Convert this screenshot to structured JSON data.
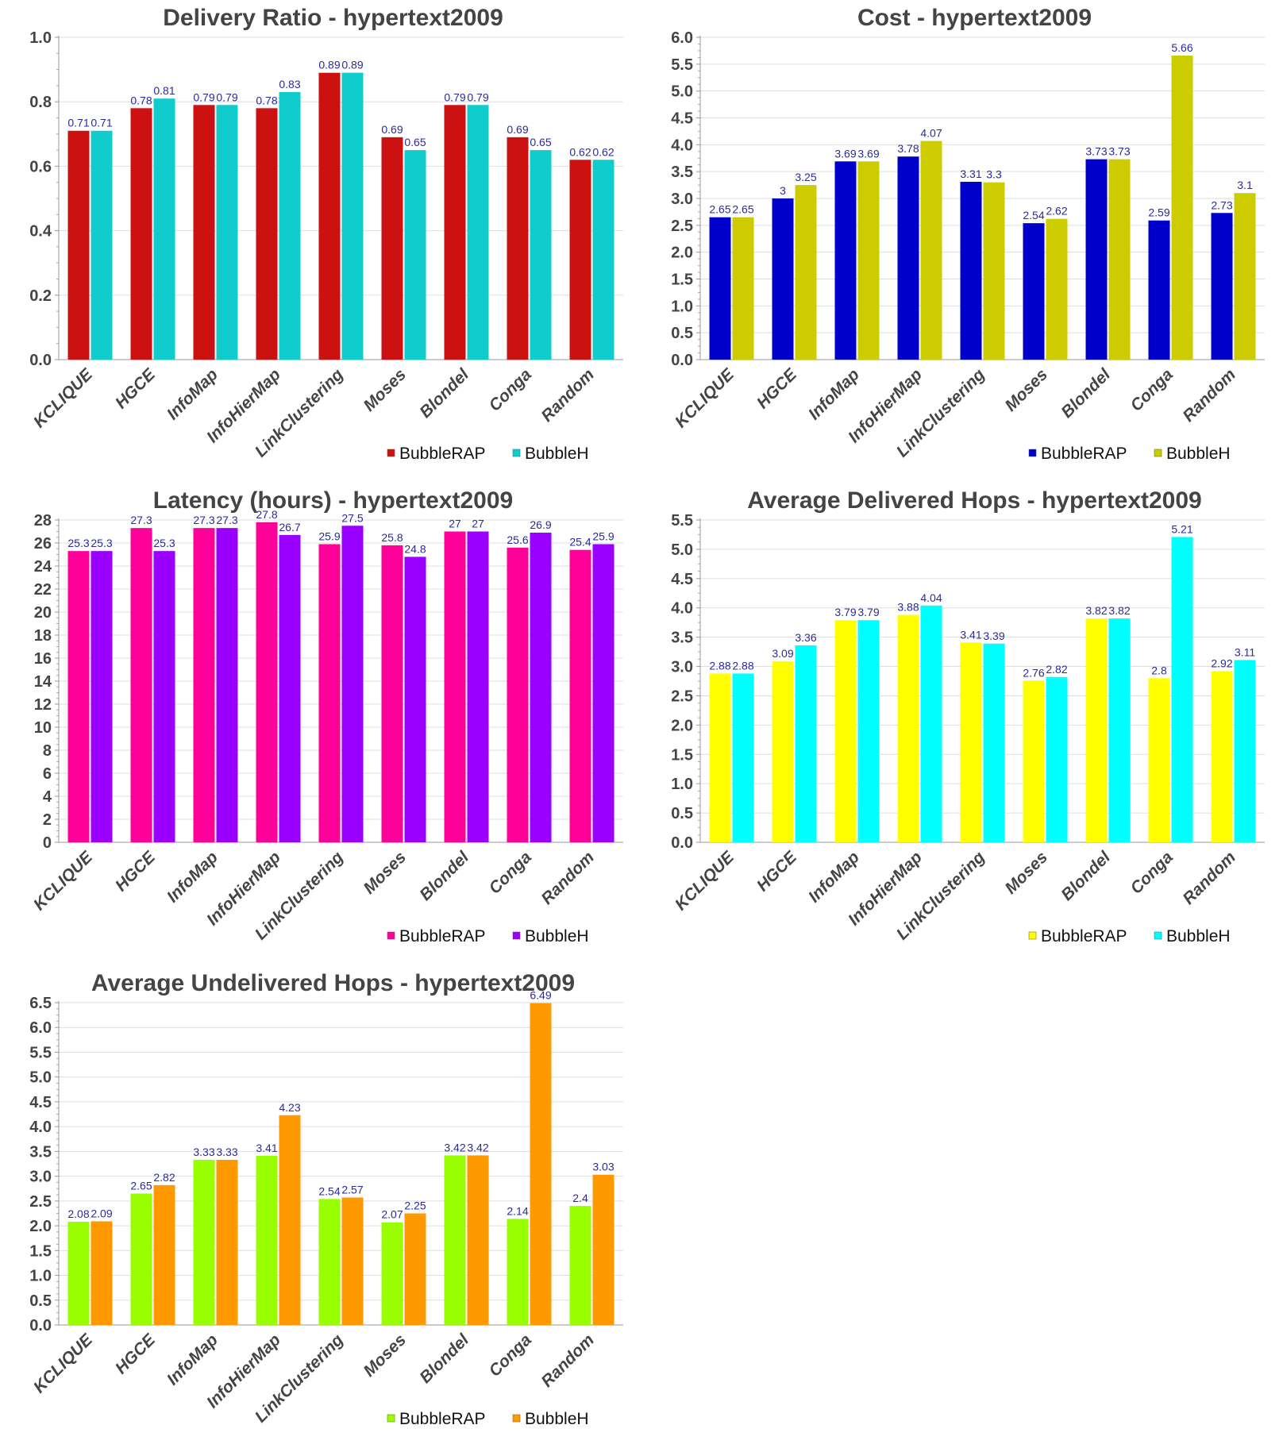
{
  "chart_data": [
    {
      "type": "bar",
      "title": "Delivery Ratio - hypertext2009",
      "xlabel": "",
      "ylabel": "",
      "categories": [
        "KCLIQUE",
        "HGCE",
        "InfoMap",
        "InfoHierMap",
        "LinkClustering",
        "Moses",
        "Blondel",
        "Conga",
        "Random"
      ],
      "series": [
        {
          "name": "BubbleRAP",
          "color": "#cc1111",
          "values": [
            0.71,
            0.78,
            0.79,
            0.78,
            0.89,
            0.69,
            0.79,
            0.69,
            0.62
          ]
        },
        {
          "name": "BubbleH",
          "color": "#11cccc",
          "values": [
            0.71,
            0.81,
            0.79,
            0.83,
            0.89,
            0.65,
            0.79,
            0.65,
            0.62
          ]
        }
      ],
      "ylim": [
        0,
        1.0
      ],
      "yticks": [
        "0.0",
        "0.2",
        "0.4",
        "0.6",
        "0.8",
        "1.0"
      ],
      "ytick_values": [
        0,
        0.2,
        0.4,
        0.6,
        0.8,
        1.0
      ],
      "grid": true,
      "legend": "bottom-right"
    },
    {
      "type": "bar",
      "title": "Cost - hypertext2009",
      "xlabel": "",
      "ylabel": "",
      "categories": [
        "KCLIQUE",
        "HGCE",
        "InfoMap",
        "InfoHierMap",
        "LinkClustering",
        "Moses",
        "Blondel",
        "Conga",
        "Random"
      ],
      "series": [
        {
          "name": "BubbleRAP",
          "color": "#0000cc",
          "values": [
            2.65,
            3,
            3.69,
            3.78,
            3.31,
            2.54,
            3.73,
            2.59,
            2.73
          ]
        },
        {
          "name": "BubbleH",
          "color": "#cccc00",
          "values": [
            2.65,
            3.25,
            3.69,
            4.07,
            3.3,
            2.62,
            3.73,
            5.66,
            3.1
          ]
        }
      ],
      "ylim": [
        0,
        6.0
      ],
      "yticks": [
        "0.0",
        "0.5",
        "1.0",
        "1.5",
        "2.0",
        "2.5",
        "3.0",
        "3.5",
        "4.0",
        "4.5",
        "5.0",
        "5.5",
        "6.0"
      ],
      "ytick_values": [
        0,
        0.5,
        1,
        1.5,
        2,
        2.5,
        3,
        3.5,
        4,
        4.5,
        5,
        5.5,
        6
      ],
      "grid": true,
      "legend": "bottom-right"
    },
    {
      "type": "bar",
      "title": "Latency (hours) - hypertext2009",
      "xlabel": "",
      "ylabel": "",
      "categories": [
        "KCLIQUE",
        "HGCE",
        "InfoMap",
        "InfoHierMap",
        "LinkClustering",
        "Moses",
        "Blondel",
        "Conga",
        "Random"
      ],
      "series": [
        {
          "name": "BubbleRAP",
          "color": "#ff0099",
          "values": [
            25.3,
            27.3,
            27.3,
            27.8,
            25.9,
            25.8,
            27,
            25.6,
            25.4
          ]
        },
        {
          "name": "BubbleH",
          "color": "#9900ff",
          "values": [
            25.3,
            25.3,
            27.3,
            26.7,
            27.5,
            24.8,
            27,
            26.9,
            25.9
          ]
        }
      ],
      "ylim": [
        0,
        28
      ],
      "yticks": [
        "0",
        "2",
        "4",
        "6",
        "8",
        "10",
        "12",
        "14",
        "16",
        "18",
        "20",
        "22",
        "24",
        "26",
        "28"
      ],
      "ytick_values": [
        0,
        2,
        4,
        6,
        8,
        10,
        12,
        14,
        16,
        18,
        20,
        22,
        24,
        26,
        28
      ],
      "grid": true,
      "legend": "bottom-right"
    },
    {
      "type": "bar",
      "title": "Average Delivered Hops - hypertext2009",
      "xlabel": "",
      "ylabel": "",
      "categories": [
        "KCLIQUE",
        "HGCE",
        "InfoMap",
        "InfoHierMap",
        "LinkClustering",
        "Moses",
        "Blondel",
        "Conga",
        "Random"
      ],
      "series": [
        {
          "name": "BubbleRAP",
          "color": "#ffff00",
          "values": [
            2.88,
            3.09,
            3.79,
            3.88,
            3.41,
            2.76,
            3.82,
            2.8,
            2.92
          ]
        },
        {
          "name": "BubbleH",
          "color": "#00ffff",
          "values": [
            2.88,
            3.36,
            3.79,
            4.04,
            3.39,
            2.82,
            3.82,
            5.21,
            3.11
          ]
        }
      ],
      "ylim": [
        0,
        5.5
      ],
      "yticks": [
        "0.0",
        "0.5",
        "1.0",
        "1.5",
        "2.0",
        "2.5",
        "3.0",
        "3.5",
        "4.0",
        "4.5",
        "5.0",
        "5.5"
      ],
      "ytick_values": [
        0,
        0.5,
        1,
        1.5,
        2,
        2.5,
        3,
        3.5,
        4,
        4.5,
        5,
        5.5
      ],
      "grid": true,
      "legend": "bottom-right"
    },
    {
      "type": "bar",
      "title": "Average Undelivered Hops - hypertext2009",
      "xlabel": "",
      "ylabel": "",
      "categories": [
        "KCLIQUE",
        "HGCE",
        "InfoMap",
        "InfoHierMap",
        "LinkClustering",
        "Moses",
        "Blondel",
        "Conga",
        "Random"
      ],
      "series": [
        {
          "name": "BubbleRAP",
          "color": "#99ff00",
          "values": [
            2.08,
            2.65,
            3.33,
            3.41,
            2.54,
            2.07,
            3.42,
            2.14,
            2.4
          ]
        },
        {
          "name": "BubbleH",
          "color": "#ff9900",
          "values": [
            2.09,
            2.82,
            3.33,
            4.23,
            2.57,
            2.25,
            3.42,
            6.49,
            3.03
          ]
        }
      ],
      "ylim": [
        0,
        6.5
      ],
      "yticks": [
        "0.0",
        "0.5",
        "1.0",
        "1.5",
        "2.0",
        "2.5",
        "3.0",
        "3.5",
        "4.0",
        "4.5",
        "5.0",
        "5.5",
        "6.0",
        "6.5"
      ],
      "ytick_values": [
        0,
        0.5,
        1,
        1.5,
        2,
        2.5,
        3,
        3.5,
        4,
        4.5,
        5,
        5.5,
        6,
        6.5
      ],
      "grid": true,
      "legend": "bottom-right"
    }
  ]
}
